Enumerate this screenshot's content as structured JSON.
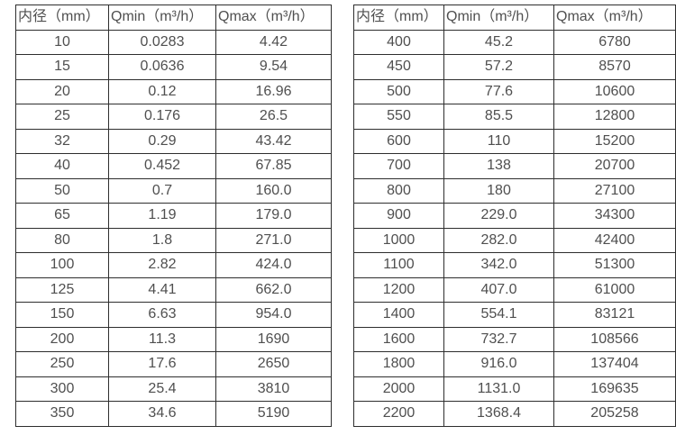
{
  "colors": {
    "border": "#2e2e2e",
    "text": "#4f4f4f",
    "background": "#ffffff"
  },
  "chart_data": [
    {
      "type": "table",
      "title": "",
      "columns": [
        "内径（mm）",
        "Qmin（m³/h）",
        "Qmax（m³/h）"
      ],
      "rows": [
        [
          "10",
          "0.0283",
          "4.42"
        ],
        [
          "15",
          "0.0636",
          "9.54"
        ],
        [
          "20",
          "0.12",
          "16.96"
        ],
        [
          "25",
          "0.176",
          "26.5"
        ],
        [
          "32",
          "0.29",
          "43.42"
        ],
        [
          "40",
          "0.452",
          "67.85"
        ],
        [
          "50",
          "0.7",
          "160.0"
        ],
        [
          "65",
          "1.19",
          "179.0"
        ],
        [
          "80",
          "1.8",
          "271.0"
        ],
        [
          "100",
          "2.82",
          "424.0"
        ],
        [
          "125",
          "4.41",
          "662.0"
        ],
        [
          "150",
          "6.63",
          "954.0"
        ],
        [
          "200",
          "11.3",
          "1690"
        ],
        [
          "250",
          "17.6",
          "2650"
        ],
        [
          "300",
          "25.4",
          "3810"
        ],
        [
          "350",
          "34.6",
          "5190"
        ]
      ]
    },
    {
      "type": "table",
      "title": "",
      "columns": [
        "内径（mm）",
        "Qmin（m³/h）",
        "Qmax（m³/h）"
      ],
      "rows": [
        [
          "400",
          "45.2",
          "6780"
        ],
        [
          "450",
          "57.2",
          "8570"
        ],
        [
          "500",
          "77.6",
          "10600"
        ],
        [
          "550",
          "85.5",
          "12800"
        ],
        [
          "600",
          "110",
          "15200"
        ],
        [
          "700",
          "138",
          "20700"
        ],
        [
          "800",
          "180",
          "27100"
        ],
        [
          "900",
          "229.0",
          "34300"
        ],
        [
          "1000",
          "282.0",
          "42400"
        ],
        [
          "1100",
          "342.0",
          "51300"
        ],
        [
          "1200",
          "407.0",
          "61000"
        ],
        [
          "1400",
          "554.1",
          "83121"
        ],
        [
          "1600",
          "732.7",
          "108566"
        ],
        [
          "1800",
          "916.0",
          "137404"
        ],
        [
          "2000",
          "1131.0",
          "169635"
        ],
        [
          "2200",
          "1368.4",
          "205258"
        ]
      ]
    }
  ]
}
